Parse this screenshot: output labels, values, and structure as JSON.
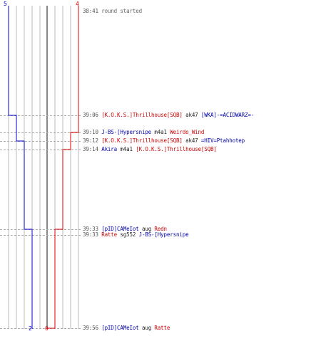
{
  "colors": {
    "team_a": "#0000cc",
    "team_b": "#dd0000",
    "divider": "#888888",
    "grid": "#bbbbbb",
    "connector": "#aaaaaa"
  },
  "counts": {
    "team_a_start": "5",
    "team_b_start": "4",
    "team_a_end": "2",
    "team_b_end": "0"
  },
  "events": [
    {
      "time": "38:41",
      "parts": [
        {
          "text": "round started",
          "team": "muted"
        }
      ]
    },
    {
      "time": "39:06",
      "parts": [
        {
          "text": "[K.O.K.S.]Thrillhouse[SQB]",
          "team": "red"
        },
        {
          "text": " ak47 ",
          "team": "plain"
        },
        {
          "text": "[WKA]-=ACIDWARZ=-",
          "team": "blue"
        }
      ]
    },
    {
      "time": "39:10",
      "parts": [
        {
          "text": "J-BS-[Hypersnipe",
          "team": "blue"
        },
        {
          "text": " m4a1 ",
          "team": "plain"
        },
        {
          "text": "Weirdo_Wind",
          "team": "red"
        }
      ]
    },
    {
      "time": "39:12",
      "parts": [
        {
          "text": "[K.O.K.S.]Thrillhouse[SQB]",
          "team": "red"
        },
        {
          "text": " ak47 ",
          "team": "plain"
        },
        {
          "text": "=HIV=Ptahhotep",
          "team": "blue"
        }
      ]
    },
    {
      "time": "39:14",
      "parts": [
        {
          "text": "Akira",
          "team": "blue"
        },
        {
          "text": " m4a1 ",
          "team": "plain"
        },
        {
          "text": "[K.O.K.S.]Thrillhouse[SQB]",
          "team": "red"
        }
      ]
    },
    {
      "time": "39:33",
      "parts": [
        {
          "text": "[pID]CAMeIot",
          "team": "blue"
        },
        {
          "text": " aug ",
          "team": "plain"
        },
        {
          "text": "Redn",
          "team": "red"
        }
      ]
    },
    {
      "time": "39:33",
      "parts": [
        {
          "text": "Ratte",
          "team": "red"
        },
        {
          "text": " sg552 ",
          "team": "plain"
        },
        {
          "text": "J-BS-[Hypersnipe",
          "team": "blue"
        }
      ]
    },
    {
      "time": "39:56",
      "parts": [
        {
          "text": "[pID]CAMeIot",
          "team": "blue"
        },
        {
          "text": " aug ",
          "team": "plain"
        },
        {
          "text": "Ratte",
          "team": "red"
        }
      ]
    }
  ],
  "chart_data": {
    "type": "line",
    "series": [
      {
        "team": "blue",
        "values": [
          5,
          4,
          4,
          3,
          3,
          2,
          2,
          2
        ]
      },
      {
        "team": "red",
        "values": [
          4,
          4,
          3,
          3,
          2,
          1,
          1,
          0
        ]
      }
    ],
    "x": [
      "38:41",
      "39:06",
      "39:10",
      "39:12",
      "39:14",
      "39:33",
      "39:33",
      "39:56"
    ]
  }
}
